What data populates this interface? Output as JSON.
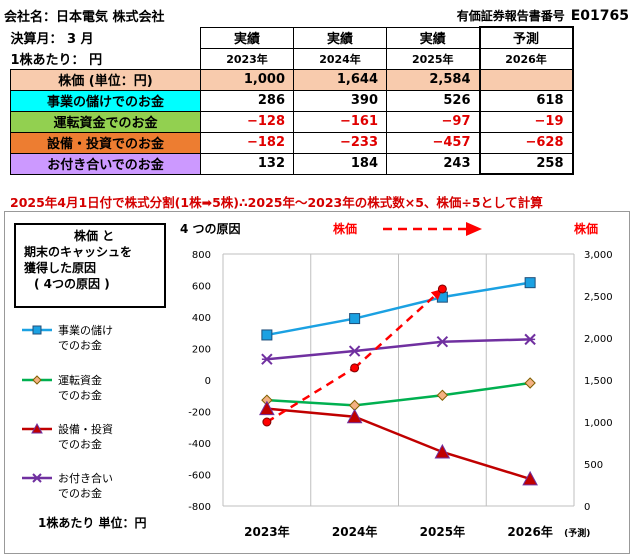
{
  "header": {
    "company": "会社名：日本電気 株式会社",
    "doc_label": "有価証券報告書番号",
    "doc_code": "E01765"
  },
  "table": {
    "fiscal_label": "決算月： 3 月",
    "per_share_label": "1株あたり： 円",
    "col_types": [
      "実績",
      "実績",
      "実績",
      "予測"
    ],
    "years": [
      "2023年",
      "2024年",
      "2025年",
      "2026年"
    ],
    "rows": [
      {
        "label": "株価 (単位：円)",
        "bg": "#f8cbad",
        "values": [
          "1,000",
          "1,644",
          "2,584",
          ""
        ]
      },
      {
        "label": "事業の儲けでのお金",
        "bg": "#00ffff",
        "values": [
          "286",
          "390",
          "526",
          "618"
        ]
      },
      {
        "label": "運転資金でのお金",
        "bg": "#92d050",
        "values": [
          "−128",
          "−161",
          "−97",
          "−19"
        ]
      },
      {
        "label": "設備・投資でのお金",
        "bg": "#ed7d31",
        "values": [
          "−182",
          "−233",
          "−457",
          "−628"
        ]
      },
      {
        "label": "お付き合いでのお金",
        "bg": "#cc99ff",
        "values": [
          "132",
          "184",
          "243",
          "258"
        ]
      }
    ]
  },
  "note": "2025年4月1日付で株式分割(1株➡5株)∴2025年〜2023年の株式数×5、株価÷5として計算",
  "legend_box": {
    "line1": "株価 と",
    "line2": "期末のキャッシュを",
    "line3": "獲得した原因",
    "line4": "( 4つの原因 )"
  },
  "unit_note": "1株あたり 単位：円",
  "chart_data": {
    "type": "line",
    "title": "4 つの原因",
    "price_label": "株価",
    "right_axis_label": "株価",
    "categories": [
      "2023年",
      "2024年",
      "2025年",
      "2026年"
    ],
    "forecast_tag": "(予測)",
    "ylim_left": [
      -800,
      800
    ],
    "yticks_left": [
      800,
      600,
      400,
      200,
      0,
      -200,
      -400,
      -600,
      -800
    ],
    "ylim_right": [
      0,
      3000
    ],
    "yticks_right": [
      3000,
      2500,
      2000,
      1500,
      1000,
      500,
      0
    ],
    "grid": "vertical",
    "series": [
      {
        "name": "事業の儲けでのお金",
        "color": "#1ba1e2",
        "marker": "square",
        "values": [
          286,
          390,
          526,
          618
        ]
      },
      {
        "name": "運転資金でのお金",
        "color": "#00b050",
        "marker": "diamond",
        "values": [
          -128,
          -161,
          -97,
          -19
        ]
      },
      {
        "name": "設備・投資でのお金",
        "color": "#c00000",
        "marker": "triangle",
        "values": [
          -182,
          -233,
          -457,
          -628
        ]
      },
      {
        "name": "お付き合いでのお金",
        "color": "#7030a0",
        "marker": "x",
        "values": [
          132,
          184,
          243,
          258
        ]
      }
    ],
    "price_series": {
      "color": "#ff0000",
      "axis": "right",
      "values": [
        1000,
        1644,
        2584
      ]
    }
  }
}
